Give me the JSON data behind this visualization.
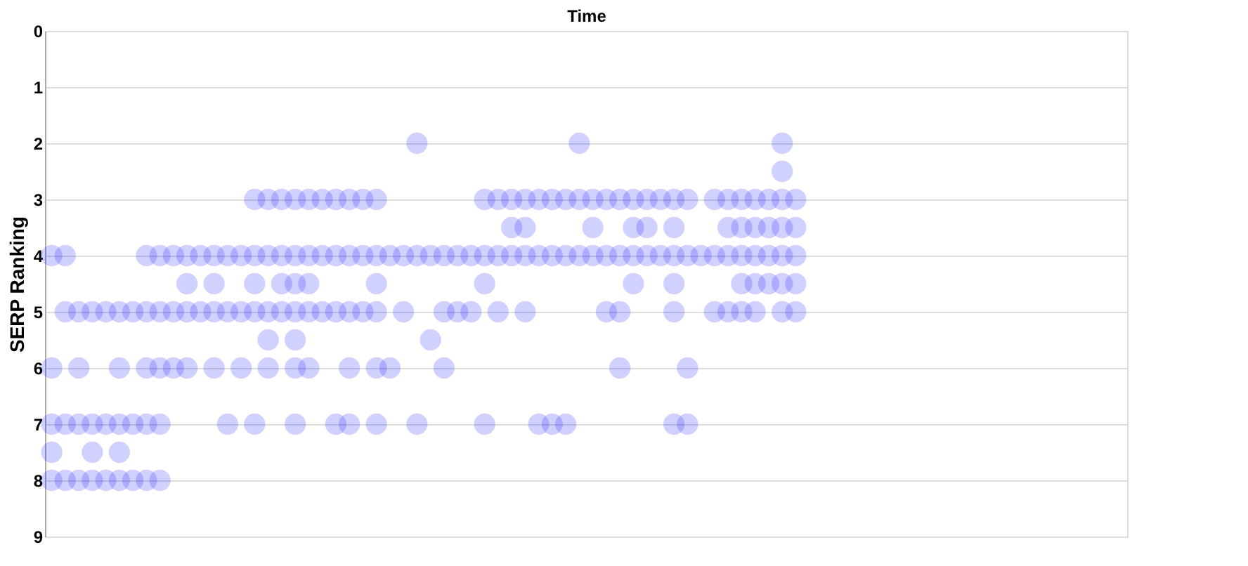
{
  "chart_data": {
    "type": "scatter",
    "xlabel": "Time",
    "ylabel": "SERP Ranking",
    "ylim": [
      9,
      0
    ],
    "yticks": [
      0,
      1,
      2,
      3,
      4,
      5,
      6,
      7,
      8,
      9
    ],
    "grid": "y",
    "tick_labels": "y",
    "marker": "circle",
    "categories": [
      null,
      null,
      null,
      null,
      null,
      null,
      null,
      null,
      null,
      null,
      null,
      null,
      null,
      null,
      null,
      null,
      null,
      null,
      null,
      null,
      null,
      null,
      null,
      null,
      null,
      null,
      null,
      null,
      null,
      null,
      null,
      null,
      null,
      null,
      null,
      null,
      null,
      null,
      null,
      null,
      null,
      null,
      null,
      null,
      null,
      null,
      null,
      null,
      null,
      null,
      null,
      null,
      null,
      null,
      null,
      null,
      null,
      null,
      null,
      null,
      null,
      null,
      null,
      null,
      null,
      null,
      null,
      null,
      null,
      null,
      null,
      null,
      null,
      null,
      null,
      null,
      null,
      null,
      null,
      null
    ],
    "series": [
      {
        "color": "#0000ff",
        "values": [
          8,
          8,
          8,
          8,
          8,
          8,
          8,
          8,
          8,
          null,
          null,
          null,
          null,
          null,
          null,
          null,
          null,
          null,
          null,
          null,
          null,
          null,
          null,
          null,
          null,
          null,
          null,
          null,
          null,
          null,
          null,
          null,
          null,
          null,
          null,
          null,
          null,
          null,
          null,
          null,
          null,
          null,
          null,
          null,
          null,
          null,
          null,
          null,
          null,
          null,
          null,
          null,
          null,
          null,
          null,
          null,
          null,
          null,
          null,
          null,
          null,
          null,
          null,
          null,
          null,
          null,
          null,
          null,
          null,
          null,
          null,
          null,
          null,
          null,
          null,
          null,
          null,
          null,
          null,
          null
        ]
      },
      {
        "color": "#0000ff",
        "values": [
          7,
          7,
          7,
          7,
          7,
          7,
          7,
          7,
          7,
          null,
          null,
          null,
          null,
          7,
          null,
          7,
          null,
          null,
          7,
          null,
          null,
          7,
          7,
          null,
          7,
          null,
          null,
          7,
          null,
          null,
          null,
          null,
          7,
          null,
          null,
          null,
          7,
          7,
          7,
          null,
          null,
          null,
          null,
          null,
          null,
          null,
          7,
          7,
          null,
          null,
          null,
          null,
          null,
          null,
          null,
          null,
          null,
          null,
          null,
          null,
          null,
          null,
          null,
          null,
          null,
          null,
          null,
          null,
          null,
          null,
          null,
          null,
          null,
          null,
          null,
          null,
          null,
          null,
          null,
          null
        ]
      },
      {
        "color": "#0000ff",
        "values": [
          6,
          null,
          6,
          null,
          null,
          6,
          null,
          6,
          6,
          6,
          6,
          null,
          6,
          null,
          6,
          null,
          6,
          null,
          6,
          6,
          null,
          null,
          6,
          null,
          6,
          6,
          null,
          null,
          null,
          6,
          null,
          null,
          null,
          null,
          null,
          null,
          null,
          null,
          null,
          null,
          null,
          null,
          6,
          null,
          null,
          null,
          null,
          6,
          null,
          null,
          null,
          null,
          null,
          null,
          null,
          null,
          null,
          null,
          null,
          null,
          null,
          null,
          null,
          null,
          null,
          null,
          null,
          null,
          null,
          null,
          null,
          null,
          null,
          null,
          null,
          null,
          null,
          null,
          null,
          null
        ]
      },
      {
        "color": "#0000ff",
        "values": [
          null,
          5,
          5,
          5,
          5,
          5,
          5,
          5,
          5,
          5,
          5,
          5,
          5,
          5,
          5,
          5,
          5,
          5,
          5,
          5,
          5,
          5,
          5,
          5,
          5,
          null,
          5,
          null,
          null,
          5,
          5,
          5,
          null,
          5,
          null,
          5,
          null,
          null,
          null,
          null,
          null,
          5,
          5,
          null,
          null,
          null,
          5,
          null,
          null,
          5,
          5,
          5,
          5,
          null,
          5,
          5,
          null,
          null,
          null,
          null,
          null,
          null,
          null,
          null,
          null,
          null,
          null,
          null,
          null,
          null,
          null,
          null,
          null,
          null,
          null,
          null,
          null,
          null,
          null,
          null
        ]
      },
      {
        "color": "#0000ff",
        "values": [
          4,
          4,
          null,
          null,
          null,
          null,
          null,
          4,
          4,
          4,
          4,
          4,
          4,
          4,
          4,
          4,
          4,
          4,
          4,
          4,
          4,
          4,
          4,
          4,
          4,
          4,
          4,
          4,
          4,
          4,
          4,
          4,
          4,
          4,
          4,
          4,
          4,
          4,
          4,
          4,
          4,
          4,
          4,
          4,
          4,
          4,
          4,
          4,
          4,
          4,
          4,
          4,
          4,
          4,
          4,
          4,
          null,
          null,
          null,
          null,
          null,
          null,
          null,
          null,
          null,
          null,
          null,
          null,
          null,
          null,
          null,
          null,
          null,
          null,
          null,
          null,
          null,
          null,
          null,
          null
        ]
      },
      {
        "color": "#0000ff",
        "values": [
          null,
          null,
          null,
          null,
          null,
          null,
          null,
          null,
          null,
          null,
          null,
          null,
          null,
          null,
          null,
          3,
          3,
          3,
          3,
          3,
          3,
          3,
          3,
          3,
          3,
          null,
          null,
          null,
          null,
          null,
          null,
          null,
          3,
          3,
          3,
          3,
          3,
          3,
          3,
          3,
          3,
          3,
          3,
          3,
          3,
          3,
          3,
          3,
          null,
          3,
          3,
          3,
          3,
          3,
          3,
          3,
          null,
          null,
          null,
          null,
          null,
          null,
          null,
          null,
          null,
          null,
          null,
          null,
          null,
          null,
          null,
          null,
          null,
          null,
          null,
          null,
          null,
          null,
          null,
          null
        ]
      },
      {
        "color": "#0000ff",
        "values": [
          null,
          null,
          null,
          null,
          null,
          null,
          null,
          null,
          null,
          null,
          null,
          null,
          null,
          null,
          null,
          null,
          null,
          null,
          null,
          null,
          null,
          null,
          null,
          null,
          null,
          null,
          null,
          2,
          null,
          null,
          null,
          null,
          null,
          null,
          null,
          null,
          null,
          null,
          null,
          2,
          null,
          null,
          null,
          null,
          null,
          null,
          null,
          null,
          null,
          null,
          null,
          null,
          null,
          null,
          2,
          null,
          null,
          null,
          null,
          null,
          null,
          null,
          null,
          null,
          null,
          null,
          null,
          null,
          null,
          null,
          null,
          null,
          null,
          null,
          null,
          null,
          null,
          null,
          null,
          null
        ]
      },
      {
        "color": "#0000ff",
        "values": [
          null,
          null,
          null,
          null,
          null,
          null,
          null,
          null,
          null,
          null,
          null,
          null,
          null,
          null,
          null,
          null,
          null,
          null,
          null,
          null,
          null,
          null,
          null,
          null,
          null,
          null,
          null,
          null,
          null,
          null,
          null,
          null,
          null,
          null,
          3.5,
          3.5,
          null,
          null,
          null,
          null,
          3.5,
          null,
          null,
          3.5,
          3.5,
          null,
          3.5,
          null,
          null,
          null,
          3.5,
          3.5,
          3.5,
          3.5,
          3.5,
          3.5,
          null,
          null,
          null,
          null,
          null,
          null,
          null,
          null,
          null,
          null,
          null,
          null,
          null,
          null,
          null,
          null,
          null,
          null,
          null,
          null,
          null,
          null,
          null,
          null
        ]
      },
      {
        "color": "#0000ff",
        "values": [
          null,
          null,
          null,
          null,
          null,
          null,
          null,
          null,
          null,
          null,
          4.5,
          null,
          4.5,
          null,
          null,
          4.5,
          null,
          4.5,
          4.5,
          4.5,
          null,
          null,
          null,
          null,
          4.5,
          null,
          null,
          null,
          null,
          null,
          null,
          null,
          4.5,
          null,
          null,
          null,
          null,
          null,
          null,
          null,
          null,
          null,
          null,
          4.5,
          null,
          null,
          4.5,
          null,
          null,
          null,
          null,
          4.5,
          4.5,
          4.5,
          4.5,
          4.5,
          null,
          null,
          null,
          null,
          null,
          null,
          null,
          null,
          null,
          null,
          null,
          null,
          null,
          null,
          null,
          null,
          null,
          null,
          null,
          null,
          null,
          null,
          null,
          null
        ]
      },
      {
        "color": "#0000ff",
        "values": [
          7.5,
          null,
          null,
          7.5,
          null,
          7.5,
          null,
          null,
          null,
          null,
          null,
          null,
          null,
          null,
          null,
          null,
          5.5,
          null,
          5.5,
          null,
          null,
          null,
          null,
          null,
          null,
          null,
          null,
          null,
          5.5,
          null,
          null,
          null,
          null,
          null,
          null,
          null,
          null,
          null,
          null,
          null,
          null,
          null,
          null,
          null,
          null,
          null,
          null,
          null,
          null,
          null,
          null,
          null,
          null,
          null,
          2.5,
          null,
          null,
          null,
          null,
          null,
          null,
          null,
          null,
          null,
          null,
          null,
          null,
          null,
          null,
          null,
          null,
          null,
          null,
          null,
          null,
          null,
          null,
          null,
          null,
          null
        ]
      }
    ]
  }
}
